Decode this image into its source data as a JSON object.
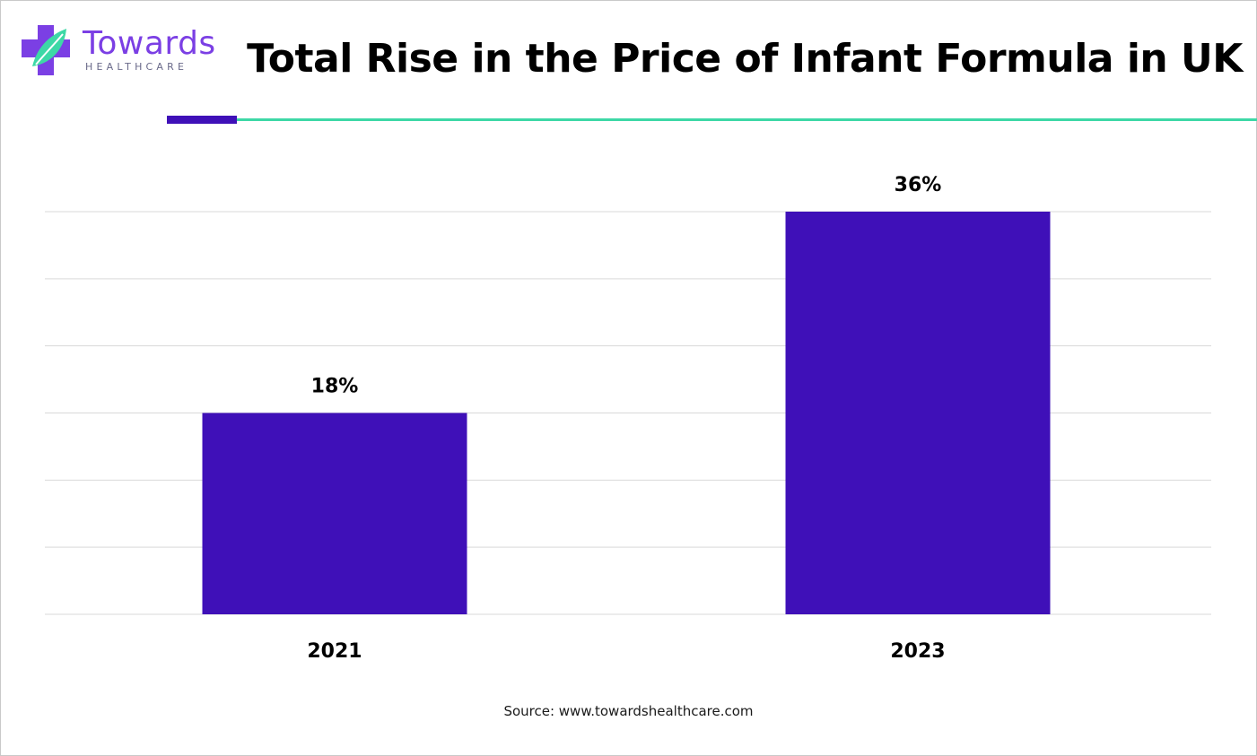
{
  "logo": {
    "name": "Towards",
    "tagline": "HEALTHCARE"
  },
  "title": "Total Rise in the Price of Infant Formula in UK",
  "source": "Source: www.towardshealthcare.com",
  "colors": {
    "bar": "#3f10b8",
    "accent_purple": "#3f10b8",
    "accent_green": "#3dd8a6",
    "logo_purple": "#7b3fe4",
    "grid": "#d9d9d9"
  },
  "chart_data": {
    "type": "bar",
    "title": "Total Rise in the Price of Infant Formula in UK",
    "categories": [
      "2021",
      "2023"
    ],
    "values": [
      18,
      36
    ],
    "value_labels": [
      "18%",
      "36%"
    ],
    "xlabel": "",
    "ylabel": "",
    "ylim": [
      0,
      36
    ],
    "grid": true,
    "legend": "none"
  }
}
